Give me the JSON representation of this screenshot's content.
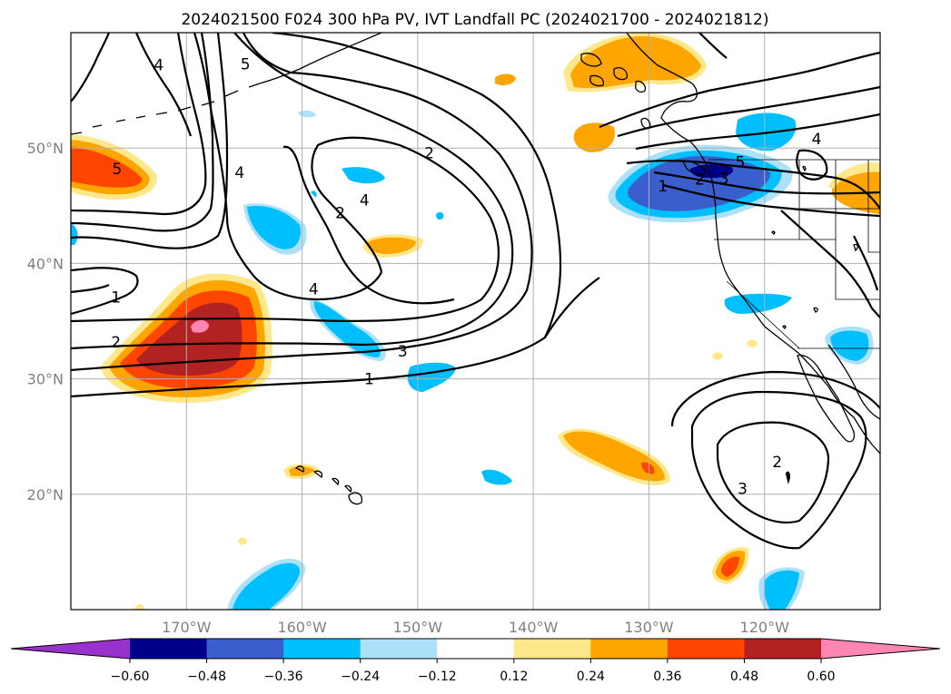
{
  "title": "2024021500 F024 300 hPa PV, IVT Landfall PC (2024021700 - 2024021812)",
  "map": {
    "projection": "PlateCarree",
    "lon_range": [
      -180,
      -110
    ],
    "lat_range": [
      10,
      60
    ],
    "gridlines": true,
    "lon_ticks": [
      {
        "lon": -170,
        "label": "170°W"
      },
      {
        "lon": -160,
        "label": "160°W"
      },
      {
        "lon": -150,
        "label": "150°W"
      },
      {
        "lon": -140,
        "label": "140°W"
      },
      {
        "lon": -130,
        "label": "130°W"
      },
      {
        "lon": -120,
        "label": "120°W"
      }
    ],
    "lat_ticks": [
      {
        "lat": 20,
        "label": "20°N"
      },
      {
        "lat": 30,
        "label": "30°N"
      },
      {
        "lat": 40,
        "label": "40°N"
      },
      {
        "lat": 50,
        "label": "50°N"
      }
    ]
  },
  "pv_contour_labels": [
    {
      "text": "2",
      "lon": -149.0,
      "lat": 49.6
    },
    {
      "text": "4",
      "lon": -172.4,
      "lat": 57.2
    },
    {
      "text": "5",
      "lon": -164.9,
      "lat": 57.3
    },
    {
      "text": "4",
      "lon": -165.4,
      "lat": 47.9
    },
    {
      "text": "2",
      "lon": -156.7,
      "lat": 44.4
    },
    {
      "text": "4",
      "lon": -154.6,
      "lat": 45.5
    },
    {
      "text": "4",
      "lon": -159.0,
      "lat": 37.8
    },
    {
      "text": "5",
      "lon": -176.0,
      "lat": 48.2
    },
    {
      "text": "1",
      "lon": -176.1,
      "lat": 37.1
    },
    {
      "text": "2",
      "lon": -176.1,
      "lat": 33.2
    },
    {
      "text": "3",
      "lon": -151.3,
      "lat": 32.4
    },
    {
      "text": "1",
      "lon": -154.2,
      "lat": 30.0
    },
    {
      "text": "1",
      "lon": -128.8,
      "lat": 46.7
    },
    {
      "text": "2",
      "lon": -125.6,
      "lat": 47.3
    },
    {
      "text": "3",
      "lon": -123.5,
      "lat": 47.4
    },
    {
      "text": "5",
      "lon": -122.1,
      "lat": 48.8
    },
    {
      "text": "4",
      "lon": -115.5,
      "lat": 50.8
    },
    {
      "text": "2",
      "lon": -118.9,
      "lat": 22.8
    },
    {
      "text": "3",
      "lon": -121.9,
      "lat": 20.5
    }
  ],
  "colorbar": {
    "ticks": [
      "−0.60",
      "−0.48",
      "−0.36",
      "−0.24",
      "−0.12",
      "0.12",
      "0.24",
      "0.36",
      "0.48",
      "0.60"
    ],
    "colors": [
      "#9932CC",
      "#00008B",
      "#3A5FCD",
      "#00BFFF",
      "#ADE1FA",
      "#FFFFFF",
      "#FFE78C",
      "#FFA500",
      "#FF4500",
      "#B22222",
      "#FF85B2"
    ],
    "extend": "both"
  },
  "shading_levels": {
    "neg_strong": "#3A5FCD",
    "neg_mid": "#00BFFF",
    "neg_weak": "#ADE1FA",
    "pos_weak": "#FFE78C",
    "pos_mid": "#FFA500",
    "pos_strong": "#FF4500",
    "pos_vstrong": "#B22222",
    "pos_max": "#FF85B2"
  }
}
